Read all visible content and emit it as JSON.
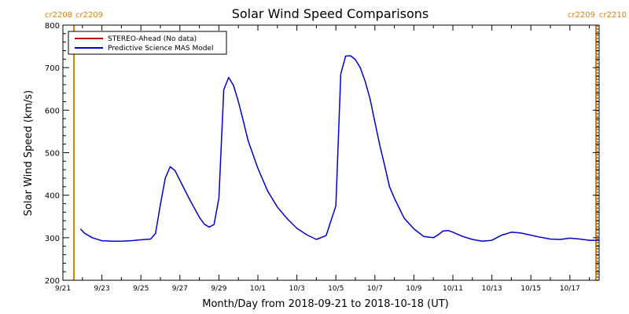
{
  "chart_data": {
    "type": "line",
    "title": "Solar Wind Speed Comparisons",
    "xlabel": "Month/Day from 2018-09-21 to 2018-10-18 (UT)",
    "ylabel": "Solar Wind Speed (km/s)",
    "ylim": [
      200,
      800
    ],
    "y_ticks": [
      200,
      300,
      400,
      500,
      600,
      700,
      800
    ],
    "x_start": "2018-09-21",
    "x_end": "2018-10-18",
    "xlim": [
      0,
      27.5
    ],
    "x_ticks": [
      {
        "x": 0,
        "label": "9/21"
      },
      {
        "x": 2,
        "label": "9/23"
      },
      {
        "x": 4,
        "label": "9/25"
      },
      {
        "x": 6,
        "label": "9/27"
      },
      {
        "x": 8,
        "label": "9/29"
      },
      {
        "x": 10,
        "label": "10/1"
      },
      {
        "x": 12,
        "label": "10/3"
      },
      {
        "x": 14,
        "label": "10/5"
      },
      {
        "x": 16,
        "label": "10/7"
      },
      {
        "x": 18,
        "label": "10/9"
      },
      {
        "x": 20,
        "label": "10/11"
      },
      {
        "x": 22,
        "label": "10/13"
      },
      {
        "x": 24,
        "label": "10/15"
      },
      {
        "x": 26,
        "label": "10/17"
      }
    ],
    "legend_position": "top-left",
    "series": [
      {
        "name": "STEREO-Ahead (No data)",
        "color": "#c00000",
        "x": [],
        "y": []
      },
      {
        "name": "Predictive Science MAS Model",
        "color": "#0000cc",
        "x": [
          0.9,
          1.1,
          1.5,
          2.0,
          2.5,
          3.0,
          3.5,
          4.0,
          4.5,
          4.75,
          5.0,
          5.25,
          5.5,
          5.75,
          6.0,
          6.5,
          7.0,
          7.25,
          7.5,
          7.75,
          8.0,
          8.25,
          8.5,
          8.75,
          9.0,
          9.25,
          9.5,
          10.0,
          10.5,
          11.0,
          11.5,
          12.0,
          12.5,
          13.0,
          13.5,
          14.0,
          14.25,
          14.5,
          14.75,
          15.0,
          15.25,
          15.5,
          15.75,
          16.0,
          16.25,
          16.5,
          16.75,
          17.0,
          17.5,
          18.0,
          18.5,
          19.0,
          19.25,
          19.5,
          19.75,
          20.0,
          20.5,
          21.0,
          21.5,
          22.0,
          22.5,
          23.0,
          23.5,
          24.0,
          24.5,
          25.0,
          25.5,
          26.0,
          26.5,
          27.0,
          27.5
        ],
        "y": [
          321,
          311,
          300,
          293,
          292,
          292,
          293,
          295,
          297,
          310,
          378,
          440,
          467,
          458,
          435,
          390,
          348,
          332,
          325,
          331,
          393,
          648,
          677,
          658,
          620,
          575,
          528,
          463,
          410,
          372,
          345,
          322,
          307,
          296,
          305,
          375,
          685,
          727,
          728,
          719,
          700,
          668,
          627,
          572,
          518,
          470,
          420,
          393,
          346,
          321,
          303,
          300,
          307,
          316,
          317,
          313,
          303,
          296,
          292,
          294,
          306,
          313,
          311,
          306,
          301,
          297,
          296,
          299,
          297,
          294,
          294
        ]
      }
    ],
    "cr_markers_left": [
      "cr2208",
      "cr2209"
    ],
    "cr_markers_right": [
      "cr2209",
      "cr2210"
    ],
    "cr_marker_color": "#e08000"
  }
}
